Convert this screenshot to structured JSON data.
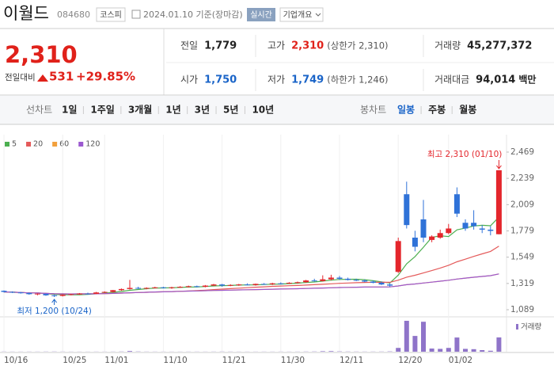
{
  "header": {
    "name": "이월드",
    "code": "084680",
    "market": "코스피",
    "date": "2024.01.10 기준(장마감)",
    "realtime": "실시간",
    "company": "기업개요"
  },
  "price": {
    "current": "2,310",
    "change_label": "전일대비",
    "change": "531",
    "rate": "+29.85%",
    "color": "#e0211a"
  },
  "stats": [
    {
      "label": "전일",
      "value": "1,779",
      "color": "#222222"
    },
    {
      "label": "고가",
      "value": "2,310",
      "note": "(상한가 2,310)",
      "color": "#e0211a"
    },
    {
      "label": "거래량",
      "value": "45,277,372",
      "color": "#222222"
    },
    {
      "label": "시가",
      "value": "1,750",
      "color": "#1a64c8"
    },
    {
      "label": "저가",
      "value": "1,749",
      "note": "(하한가 1,246)",
      "color": "#1a64c8"
    },
    {
      "label": "거래대금",
      "value": "94,014",
      "unit": "백만",
      "color": "#222222"
    }
  ],
  "tabs": {
    "line_label": "선차트",
    "line": [
      "1일",
      "1주일",
      "3개월",
      "1년",
      "3년",
      "5년",
      "10년"
    ],
    "candle_label": "봉차트",
    "candle": [
      "일봉",
      "주봉",
      "월봉"
    ],
    "candle_selected": 0
  },
  "chart_data": {
    "type": "candlestick",
    "categories": [
      "10/16",
      null,
      null,
      null,
      null,
      null,
      null,
      "10/25",
      null,
      null,
      null,
      null,
      "11/01",
      null,
      null,
      null,
      null,
      null,
      null,
      "11/10",
      null,
      null,
      null,
      null,
      null,
      null,
      "11/21",
      null,
      null,
      null,
      null,
      null,
      null,
      "11/30",
      null,
      null,
      null,
      null,
      null,
      null,
      "12/11",
      null,
      null,
      null,
      null,
      null,
      null,
      "12/20",
      null,
      null,
      null,
      null,
      null,
      "01/02",
      null,
      null,
      null,
      null,
      null,
      null
    ],
    "open": [
      1255,
      1245,
      1240,
      1235,
      1225,
      1228,
      1215,
      1210,
      1220,
      1225,
      1230,
      1228,
      1240,
      1245,
      1260,
      1270,
      1280,
      1275,
      1280,
      1285,
      1280,
      1285,
      1290,
      1295,
      1290,
      1300,
      1310,
      1300,
      1305,
      1310,
      1305,
      1315,
      1312,
      1320,
      1318,
      1325,
      1330,
      1345,
      1340,
      1355,
      1370,
      1360,
      1350,
      1345,
      1335,
      1325,
      1310,
      1420,
      2100,
      1720,
      1880,
      1700,
      1720,
      1760,
      2100,
      1850,
      1850,
      1800,
      1790,
      1750
    ],
    "high": [
      1258,
      1250,
      1245,
      1240,
      1232,
      1230,
      1220,
      1225,
      1230,
      1235,
      1238,
      1245,
      1250,
      1262,
      1275,
      1350,
      1290,
      1285,
      1290,
      1290,
      1290,
      1295,
      1300,
      1300,
      1305,
      1315,
      1315,
      1312,
      1315,
      1320,
      1318,
      1322,
      1325,
      1328,
      1330,
      1335,
      1350,
      1360,
      1390,
      1395,
      1385,
      1370,
      1360,
      1355,
      1345,
      1335,
      1320,
      1720,
      2210,
      1780,
      2050,
      1740,
      1790,
      1840,
      2160,
      1880,
      1960,
      1830,
      1820,
      2310
    ],
    "low": [
      1240,
      1235,
      1230,
      1220,
      1215,
      1210,
      1200,
      1205,
      1215,
      1220,
      1222,
      1225,
      1235,
      1240,
      1255,
      1265,
      1270,
      1268,
      1275,
      1275,
      1272,
      1280,
      1283,
      1285,
      1285,
      1295,
      1290,
      1295,
      1298,
      1302,
      1300,
      1308,
      1305,
      1312,
      1314,
      1318,
      1325,
      1335,
      1335,
      1345,
      1350,
      1345,
      1340,
      1330,
      1320,
      1305,
      1290,
      1410,
      1800,
      1600,
      1680,
      1680,
      1710,
      1750,
      1900,
      1780,
      1790,
      1760,
      1740,
      1749
    ],
    "close": [
      1245,
      1240,
      1235,
      1225,
      1230,
      1215,
      1210,
      1220,
      1225,
      1230,
      1228,
      1240,
      1245,
      1260,
      1270,
      1280,
      1275,
      1280,
      1285,
      1280,
      1285,
      1290,
      1295,
      1290,
      1300,
      1310,
      1300,
      1305,
      1310,
      1305,
      1315,
      1312,
      1320,
      1318,
      1325,
      1330,
      1345,
      1340,
      1355,
      1370,
      1360,
      1350,
      1345,
      1335,
      1325,
      1310,
      1300,
      1690,
      1830,
      1640,
      1720,
      1730,
      1760,
      1800,
      1930,
      1800,
      1820,
      1790,
      1779,
      2310
    ],
    "volume": [
      420000,
      380000,
      350000,
      400000,
      360000,
      450000,
      520000,
      410000,
      330000,
      300000,
      280000,
      350000,
      300000,
      380000,
      600000,
      2100000,
      700000,
      400000,
      350000,
      320000,
      300000,
      330000,
      360000,
      340000,
      310000,
      380000,
      500000,
      420000,
      330000,
      310000,
      300000,
      350000,
      330000,
      360000,
      340000,
      390000,
      520000,
      640000,
      1500000,
      1800000,
      900000,
      600000,
      480000,
      420000,
      450000,
      520000,
      900000,
      12000000,
      98000000,
      50000000,
      95000000,
      10000000,
      9000000,
      12000000,
      45000000,
      9000000,
      8000000,
      5000000,
      3000000,
      45277372
    ],
    "ylim": [
      1089,
      2469
    ],
    "yticks": [
      {
        "value": 2469,
        "label": "2,469"
      },
      {
        "value": 2239,
        "label": "2,239"
      },
      {
        "value": 2009,
        "label": "2,009"
      },
      {
        "value": 1779,
        "label": "1,779"
      },
      {
        "value": 1549,
        "label": "1,549"
      },
      {
        "value": 1319,
        "label": "1,319"
      },
      {
        "value": 1089,
        "label": "1,089"
      }
    ],
    "up_color": "#e4262c",
    "down_color": "#2f72d8",
    "ma": [
      {
        "name": "5",
        "period": 5,
        "color": "#4caf50"
      },
      {
        "name": "20",
        "period": 20,
        "color": "#e45a5a"
      },
      {
        "name": "60",
        "period": 60,
        "color": "#f2a03c"
      },
      {
        "name": "120",
        "period": 120,
        "color": "#9b59d0"
      }
    ],
    "volume_label": "거래량",
    "volume_color": "#8f74c9",
    "annotations": {
      "high": "최고 2,310 (01/10)",
      "low": "최저 1,200 (10/24)"
    }
  }
}
